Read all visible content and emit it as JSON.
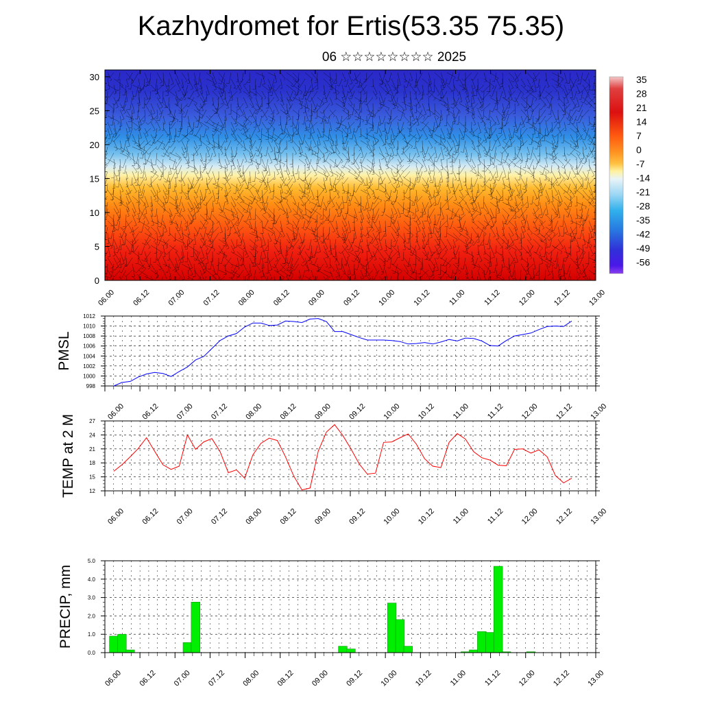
{
  "title": "Kazhydromet for Ertis(53.35 75.35)",
  "subtitle": "06 ☆☆☆☆☆☆☆☆ 2025",
  "time_labels": [
    "06.00",
    "06.12",
    "07.00",
    "07.12",
    "08.00",
    "08.12",
    "09.00",
    "09.12",
    "10.00",
    "10.12",
    "11.00",
    "11.12",
    "12.00",
    "12.12",
    "13.00"
  ],
  "colors": {
    "pmsl_line": "#0000ff",
    "temp_line": "#ff0000",
    "precip_bar": "#00ee00",
    "precip_bar_edge": "#008800"
  },
  "chart_data": [
    {
      "type": "heatmap",
      "title": "",
      "xlabel": "",
      "ylabel": "",
      "x": [
        "06.00",
        "06.12",
        "07.00",
        "07.12",
        "08.00",
        "08.12",
        "09.00",
        "09.12",
        "10.00",
        "10.12",
        "11.00",
        "11.12",
        "12.00",
        "12.12",
        "13.00"
      ],
      "ylim": [
        0,
        31
      ],
      "yticks": [
        0,
        5,
        10,
        15,
        20,
        25,
        30
      ],
      "color_scale": {
        "labels": [
          "35",
          "28",
          "21",
          "14",
          "7",
          "0",
          "-7",
          "-14",
          "-21",
          "-28",
          "-35",
          "-42",
          "-49",
          "-56"
        ]
      },
      "overlay": "wind barbs"
    },
    {
      "type": "line",
      "ylabel": "PMSL",
      "ylim": [
        998,
        1012
      ],
      "yticks": [
        998,
        1000,
        1002,
        1004,
        1006,
        1008,
        1010,
        1012
      ],
      "x_step_hours": 3,
      "series": [
        {
          "values": [
            998.0,
            998.7,
            998.9,
            999.8,
            1000.4,
            1000.7,
            1000.5,
            999.9,
            1000.9,
            1001.8,
            1003.2,
            1003.9,
            1005.5,
            1007.1,
            1008.0,
            1008.5,
            1009.8,
            1010.6,
            1010.6,
            1010.1,
            1010.2,
            1011.0,
            1010.9,
            1010.7,
            1011.4,
            1011.5,
            1010.9,
            1008.9,
            1008.9,
            1008.3,
            1007.7,
            1007.2,
            1007.2,
            1007.2,
            1007.1,
            1006.9,
            1006.4,
            1006.5,
            1006.7,
            1006.4,
            1006.8,
            1007.3,
            1007.0,
            1007.6,
            1007.5,
            1007.0,
            1006.1,
            1006.0,
            1007.1,
            1008.0,
            1008.3,
            1008.6,
            1009.3,
            1009.9,
            1010.0,
            1009.9,
            1011.0
          ]
        }
      ]
    },
    {
      "type": "line",
      "ylabel": "TEMP at 2 M",
      "ylim": [
        12,
        27
      ],
      "yticks": [
        12,
        15,
        18,
        21,
        24,
        27
      ],
      "x_step_hours": 3,
      "series": [
        {
          "values": [
            16.2,
            17.6,
            19.3,
            21.1,
            23.4,
            20.5,
            17.6,
            16.6,
            17.3,
            24.0,
            20.9,
            22.5,
            23.2,
            20.4,
            15.9,
            16.5,
            14.7,
            19.7,
            22.2,
            23.3,
            22.8,
            19.3,
            15.2,
            12.2,
            12.6,
            20.5,
            24.6,
            26.2,
            23.9,
            21.0,
            17.8,
            15.6,
            15.8,
            22.4,
            22.5,
            23.4,
            24.2,
            22.0,
            18.9,
            17.3,
            17.0,
            22.4,
            24.3,
            23.1,
            20.4,
            19.1,
            18.6,
            17.5,
            17.4,
            20.9,
            21.0,
            20.1,
            20.8,
            19.3,
            15.3,
            13.7,
            14.7
          ]
        }
      ]
    },
    {
      "type": "bar",
      "ylabel": "PRECIP, mm",
      "ylim": [
        0,
        5.0
      ],
      "yticks": [
        "0.0",
        "1.0",
        "2.0",
        "3.0",
        "4.0",
        "5.0"
      ],
      "x_step_hours": 3,
      "values": [
        0.9,
        1.0,
        0.15,
        0,
        0,
        0,
        0,
        0,
        0,
        0.55,
        2.75,
        0,
        0,
        0,
        0,
        0,
        0,
        0,
        0,
        0,
        0,
        0,
        0,
        0,
        0,
        0,
        0,
        0,
        0.35,
        0.2,
        0,
        0,
        0,
        0,
        2.7,
        1.8,
        0.35,
        0,
        0,
        0,
        0,
        0,
        0,
        0.05,
        0.15,
        1.15,
        1.1,
        4.7,
        0.05,
        0,
        0,
        0.05,
        0,
        0,
        0,
        0,
        0
      ]
    }
  ]
}
